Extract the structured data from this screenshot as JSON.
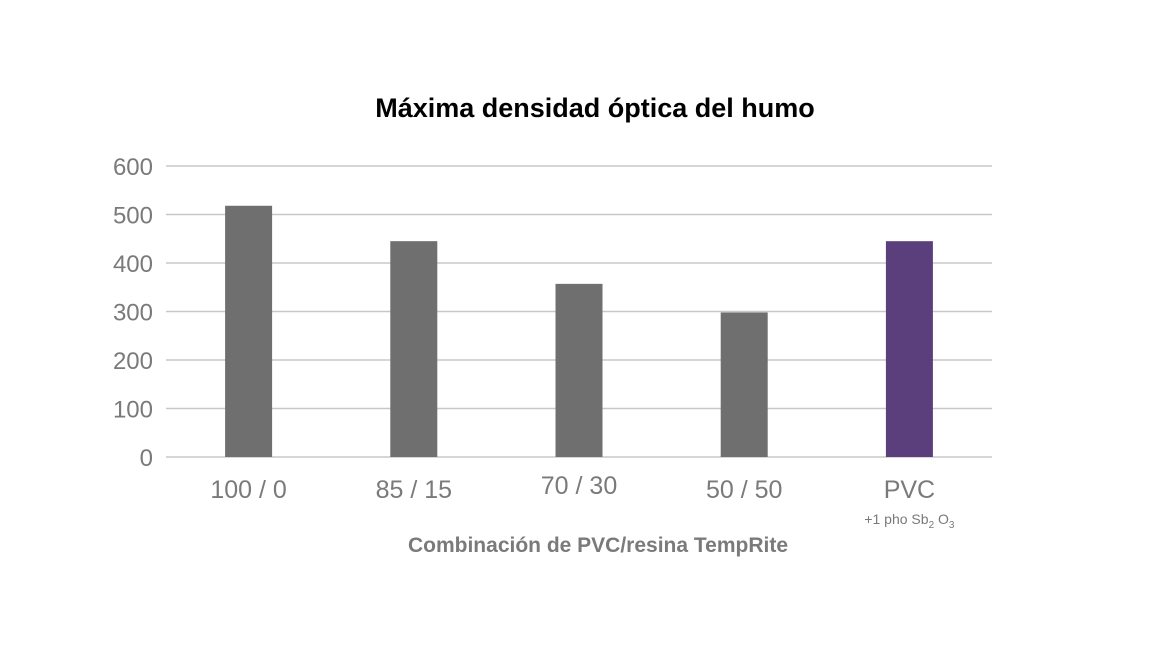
{
  "chart_data": {
    "type": "bar",
    "title": "Máxima densidad óptica del humo",
    "xlabel": "Combinación de PVC/resina TempRite",
    "ylabel": "",
    "ylim": [
      0,
      600
    ],
    "yticks": [
      "0",
      "100",
      "200",
      "300",
      "400",
      "500",
      "600"
    ],
    "grid": true,
    "categories": [
      "100 / 0",
      "85 / 15",
      "70 / 30",
      "50 / 50",
      "PVC"
    ],
    "category_subtitle": {
      "index": 4,
      "prefix": "+1 pho Sb",
      "sub1": "2",
      "mid": " O",
      "sub2": "3"
    },
    "values": [
      518,
      445,
      357,
      298,
      445
    ],
    "colors": [
      "#6f6f6f",
      "#6f6f6f",
      "#6f6f6f",
      "#6f6f6f",
      "#5b3e7c"
    ]
  }
}
